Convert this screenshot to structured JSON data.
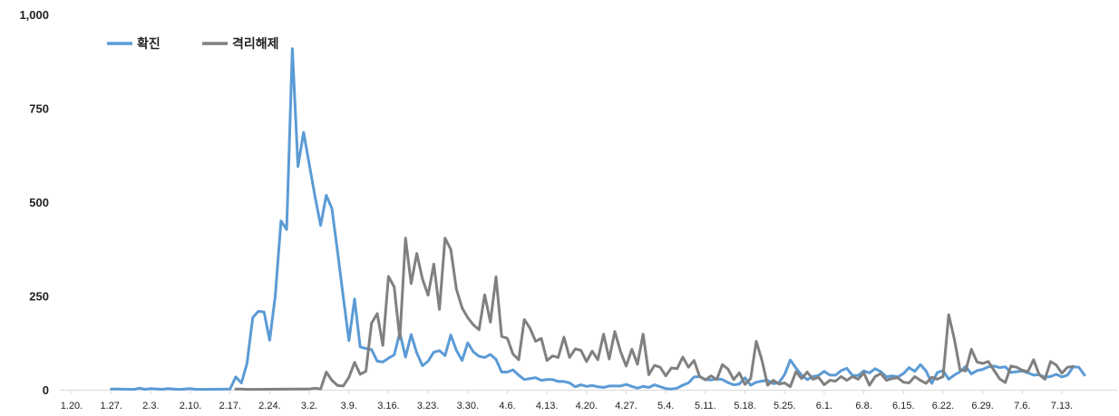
{
  "chart_data": {
    "type": "line",
    "title": "",
    "xlabel": "",
    "ylabel": "",
    "ylim": [
      0,
      1000
    ],
    "yticks": [
      "0",
      "250",
      "500",
      "750",
      "1,000"
    ],
    "ytick_values": [
      0,
      250,
      500,
      750,
      1000
    ],
    "xlim": [
      0,
      185
    ],
    "xtick_labels": [
      "1.20.",
      "1.27.",
      "2.3.",
      "2.10.",
      "2.17.",
      "2.24.",
      "3.2.",
      "3.9.",
      "3.16.",
      "3.23.",
      "3.30.",
      "4.6.",
      "4.13.",
      "4.20.",
      "4.27.",
      "5.4.",
      "5.11.",
      "5.18.",
      "5.25.",
      "6.1.",
      "6.8.",
      "6.15.",
      "6.22.",
      "6.29.",
      "7.6.",
      "7.13."
    ],
    "grid": false,
    "legend_position": "top-left",
    "series": [
      {
        "name": "확진",
        "color": "#5B9BD5",
        "values": [
          [
            7,
            2
          ],
          [
            8,
            2
          ],
          [
            11,
            1
          ],
          [
            12,
            4
          ],
          [
            13,
            1
          ],
          [
            14,
            3
          ],
          [
            16,
            1
          ],
          [
            17,
            3
          ],
          [
            18,
            2
          ],
          [
            19,
            1
          ],
          [
            20,
            2
          ],
          [
            21,
            3
          ],
          [
            22,
            1
          ],
          [
            23,
            1
          ],
          [
            24,
            1
          ],
          [
            28,
            2
          ],
          [
            29,
            34
          ],
          [
            30,
            18
          ],
          [
            31,
            70
          ],
          [
            32,
            192
          ],
          [
            33,
            209
          ],
          [
            34,
            207
          ],
          [
            35,
            132
          ],
          [
            36,
            251
          ],
          [
            37,
            450
          ],
          [
            38,
            427
          ],
          [
            39,
            909
          ],
          [
            40,
            595
          ],
          [
            41,
            686
          ],
          [
            42,
            600
          ],
          [
            43,
            516
          ],
          [
            44,
            438
          ],
          [
            45,
            518
          ],
          [
            46,
            483
          ],
          [
            47,
            367
          ],
          [
            48,
            248
          ],
          [
            49,
            131
          ],
          [
            50,
            242
          ],
          [
            51,
            114
          ],
          [
            52,
            110
          ],
          [
            53,
            107
          ],
          [
            54,
            76
          ],
          [
            55,
            74
          ],
          [
            56,
            84
          ],
          [
            57,
            93
          ],
          [
            58,
            152
          ],
          [
            59,
            87
          ],
          [
            60,
            147
          ],
          [
            61,
            98
          ],
          [
            62,
            64
          ],
          [
            63,
            76
          ],
          [
            64,
            100
          ],
          [
            65,
            104
          ],
          [
            66,
            91
          ],
          [
            67,
            146
          ],
          [
            68,
            105
          ],
          [
            69,
            78
          ],
          [
            70,
            125
          ],
          [
            71,
            101
          ],
          [
            72,
            89
          ],
          [
            73,
            86
          ],
          [
            74,
            94
          ],
          [
            75,
            81
          ],
          [
            76,
            47
          ],
          [
            77,
            47
          ],
          [
            78,
            53
          ],
          [
            79,
            39
          ],
          [
            80,
            27
          ],
          [
            81,
            30
          ],
          [
            82,
            32
          ],
          [
            83,
            25
          ],
          [
            84,
            27
          ],
          [
            85,
            27
          ],
          [
            86,
            22
          ],
          [
            87,
            22
          ],
          [
            88,
            18
          ],
          [
            89,
            8
          ],
          [
            90,
            13
          ],
          [
            91,
            9
          ],
          [
            92,
            11
          ],
          [
            93,
            8
          ],
          [
            94,
            6
          ],
          [
            95,
            10
          ],
          [
            96,
            10
          ],
          [
            97,
            10
          ],
          [
            98,
            14
          ],
          [
            99,
            9
          ],
          [
            100,
            4
          ],
          [
            101,
            9
          ],
          [
            102,
            6
          ],
          [
            103,
            13
          ],
          [
            104,
            8
          ],
          [
            105,
            3
          ],
          [
            106,
            2
          ],
          [
            107,
            4
          ],
          [
            108,
            12
          ],
          [
            109,
            18
          ],
          [
            110,
            34
          ],
          [
            111,
            35
          ],
          [
            112,
            27
          ],
          [
            113,
            26
          ],
          [
            114,
            29
          ],
          [
            115,
            27
          ],
          [
            116,
            19
          ],
          [
            117,
            13
          ],
          [
            118,
            15
          ],
          [
            119,
            32
          ],
          [
            120,
            12
          ],
          [
            121,
            20
          ],
          [
            122,
            23
          ],
          [
            123,
            25
          ],
          [
            124,
            16
          ],
          [
            125,
            19
          ],
          [
            126,
            40
          ],
          [
            127,
            79
          ],
          [
            128,
            58
          ],
          [
            129,
            39
          ],
          [
            130,
            27
          ],
          [
            131,
            35
          ],
          [
            132,
            38
          ],
          [
            133,
            49
          ],
          [
            134,
            39
          ],
          [
            135,
            39
          ],
          [
            136,
            51
          ],
          [
            137,
            57
          ],
          [
            138,
            38
          ],
          [
            139,
            38
          ],
          [
            140,
            50
          ],
          [
            141,
            45
          ],
          [
            142,
            56
          ],
          [
            143,
            48
          ],
          [
            144,
            34
          ],
          [
            145,
            37
          ],
          [
            146,
            34
          ],
          [
            147,
            43
          ],
          [
            148,
            59
          ],
          [
            149,
            49
          ],
          [
            150,
            67
          ],
          [
            151,
            50
          ],
          [
            152,
            17
          ],
          [
            153,
            46
          ],
          [
            154,
            51
          ],
          [
            155,
            28
          ],
          [
            156,
            39
          ],
          [
            157,
            48
          ],
          [
            158,
            62
          ],
          [
            159,
            42
          ],
          [
            160,
            51
          ],
          [
            161,
            54
          ],
          [
            162,
            61
          ],
          [
            163,
            63
          ],
          [
            164,
            59
          ],
          [
            165,
            61
          ],
          [
            166,
            46
          ],
          [
            167,
            48
          ],
          [
            168,
            50
          ],
          [
            169,
            45
          ],
          [
            170,
            39
          ],
          [
            171,
            40
          ],
          [
            172,
            33
          ],
          [
            173,
            35
          ],
          [
            174,
            41
          ],
          [
            175,
            34
          ],
          [
            176,
            39
          ],
          [
            177,
            61
          ],
          [
            178,
            60
          ],
          [
            179,
            39
          ]
        ]
      },
      {
        "name": "격리해제",
        "color": "#808080",
        "values": [
          [
            29,
            2
          ],
          [
            30,
            2
          ],
          [
            31,
            1
          ],
          [
            32,
            1
          ],
          [
            40,
            2
          ],
          [
            41,
            2
          ],
          [
            42,
            2
          ],
          [
            43,
            4
          ],
          [
            44,
            2
          ],
          [
            45,
            47
          ],
          [
            46,
            25
          ],
          [
            47,
            11
          ],
          [
            48,
            10
          ],
          [
            49,
            33
          ],
          [
            50,
            73
          ],
          [
            51,
            41
          ],
          [
            52,
            49
          ],
          [
            53,
            177
          ],
          [
            54,
            203
          ],
          [
            55,
            118
          ],
          [
            56,
            302
          ],
          [
            57,
            274
          ],
          [
            58,
            136
          ],
          [
            59,
            404
          ],
          [
            60,
            283
          ],
          [
            61,
            363
          ],
          [
            62,
            295
          ],
          [
            63,
            252
          ],
          [
            64,
            335
          ],
          [
            65,
            214
          ],
          [
            66,
            404
          ],
          [
            67,
            374
          ],
          [
            68,
            268
          ],
          [
            69,
            218
          ],
          [
            70,
            192
          ],
          [
            71,
            173
          ],
          [
            72,
            160
          ],
          [
            73,
            253
          ],
          [
            74,
            180
          ],
          [
            75,
            301
          ],
          [
            76,
            142
          ],
          [
            77,
            137
          ],
          [
            78,
            95
          ],
          [
            79,
            80
          ],
          [
            80,
            187
          ],
          [
            81,
            164
          ],
          [
            82,
            129
          ],
          [
            83,
            137
          ],
          [
            84,
            78
          ],
          [
            85,
            90
          ],
          [
            86,
            86
          ],
          [
            87,
            140
          ],
          [
            88,
            86
          ],
          [
            89,
            109
          ],
          [
            90,
            105
          ],
          [
            91,
            75
          ],
          [
            92,
            103
          ],
          [
            93,
            80
          ],
          [
            94,
            148
          ],
          [
            95,
            82
          ],
          [
            96,
            155
          ],
          [
            97,
            102
          ],
          [
            98,
            63
          ],
          [
            99,
            108
          ],
          [
            100,
            68
          ],
          [
            101,
            148
          ],
          [
            102,
            40
          ],
          [
            103,
            65
          ],
          [
            104,
            60
          ],
          [
            105,
            37
          ],
          [
            106,
            58
          ],
          [
            107,
            56
          ],
          [
            108,
            87
          ],
          [
            109,
            60
          ],
          [
            110,
            78
          ],
          [
            111,
            35
          ],
          [
            112,
            26
          ],
          [
            113,
            37
          ],
          [
            114,
            27
          ],
          [
            115,
            67
          ],
          [
            116,
            55
          ],
          [
            117,
            27
          ],
          [
            118,
            45
          ],
          [
            119,
            14
          ],
          [
            120,
            30
          ],
          [
            121,
            129
          ],
          [
            122,
            78
          ],
          [
            123,
            12
          ],
          [
            124,
            25
          ],
          [
            125,
            15
          ],
          [
            126,
            18
          ],
          [
            127,
            8
          ],
          [
            128,
            48
          ],
          [
            129,
            30
          ],
          [
            130,
            47
          ],
          [
            131,
            28
          ],
          [
            132,
            33
          ],
          [
            133,
            13
          ],
          [
            134,
            25
          ],
          [
            135,
            23
          ],
          [
            136,
            35
          ],
          [
            137,
            25
          ],
          [
            138,
            35
          ],
          [
            139,
            28
          ],
          [
            140,
            45
          ],
          [
            141,
            12
          ],
          [
            142,
            35
          ],
          [
            143,
            43
          ],
          [
            144,
            25
          ],
          [
            145,
            30
          ],
          [
            146,
            32
          ],
          [
            147,
            20
          ],
          [
            148,
            18
          ],
          [
            149,
            35
          ],
          [
            150,
            25
          ],
          [
            151,
            17
          ],
          [
            152,
            33
          ],
          [
            153,
            28
          ],
          [
            154,
            35
          ],
          [
            155,
            200
          ],
          [
            156,
            135
          ],
          [
            157,
            53
          ],
          [
            158,
            50
          ],
          [
            159,
            108
          ],
          [
            160,
            74
          ],
          [
            161,
            70
          ],
          [
            162,
            75
          ],
          [
            163,
            52
          ],
          [
            164,
            29
          ],
          [
            165,
            19
          ],
          [
            166,
            63
          ],
          [
            167,
            60
          ],
          [
            168,
            52
          ],
          [
            169,
            48
          ],
          [
            170,
            80
          ],
          [
            171,
            40
          ],
          [
            172,
            28
          ],
          [
            173,
            75
          ],
          [
            174,
            66
          ],
          [
            175,
            44
          ],
          [
            176,
            60
          ],
          [
            177,
            62
          ]
        ]
      }
    ]
  }
}
